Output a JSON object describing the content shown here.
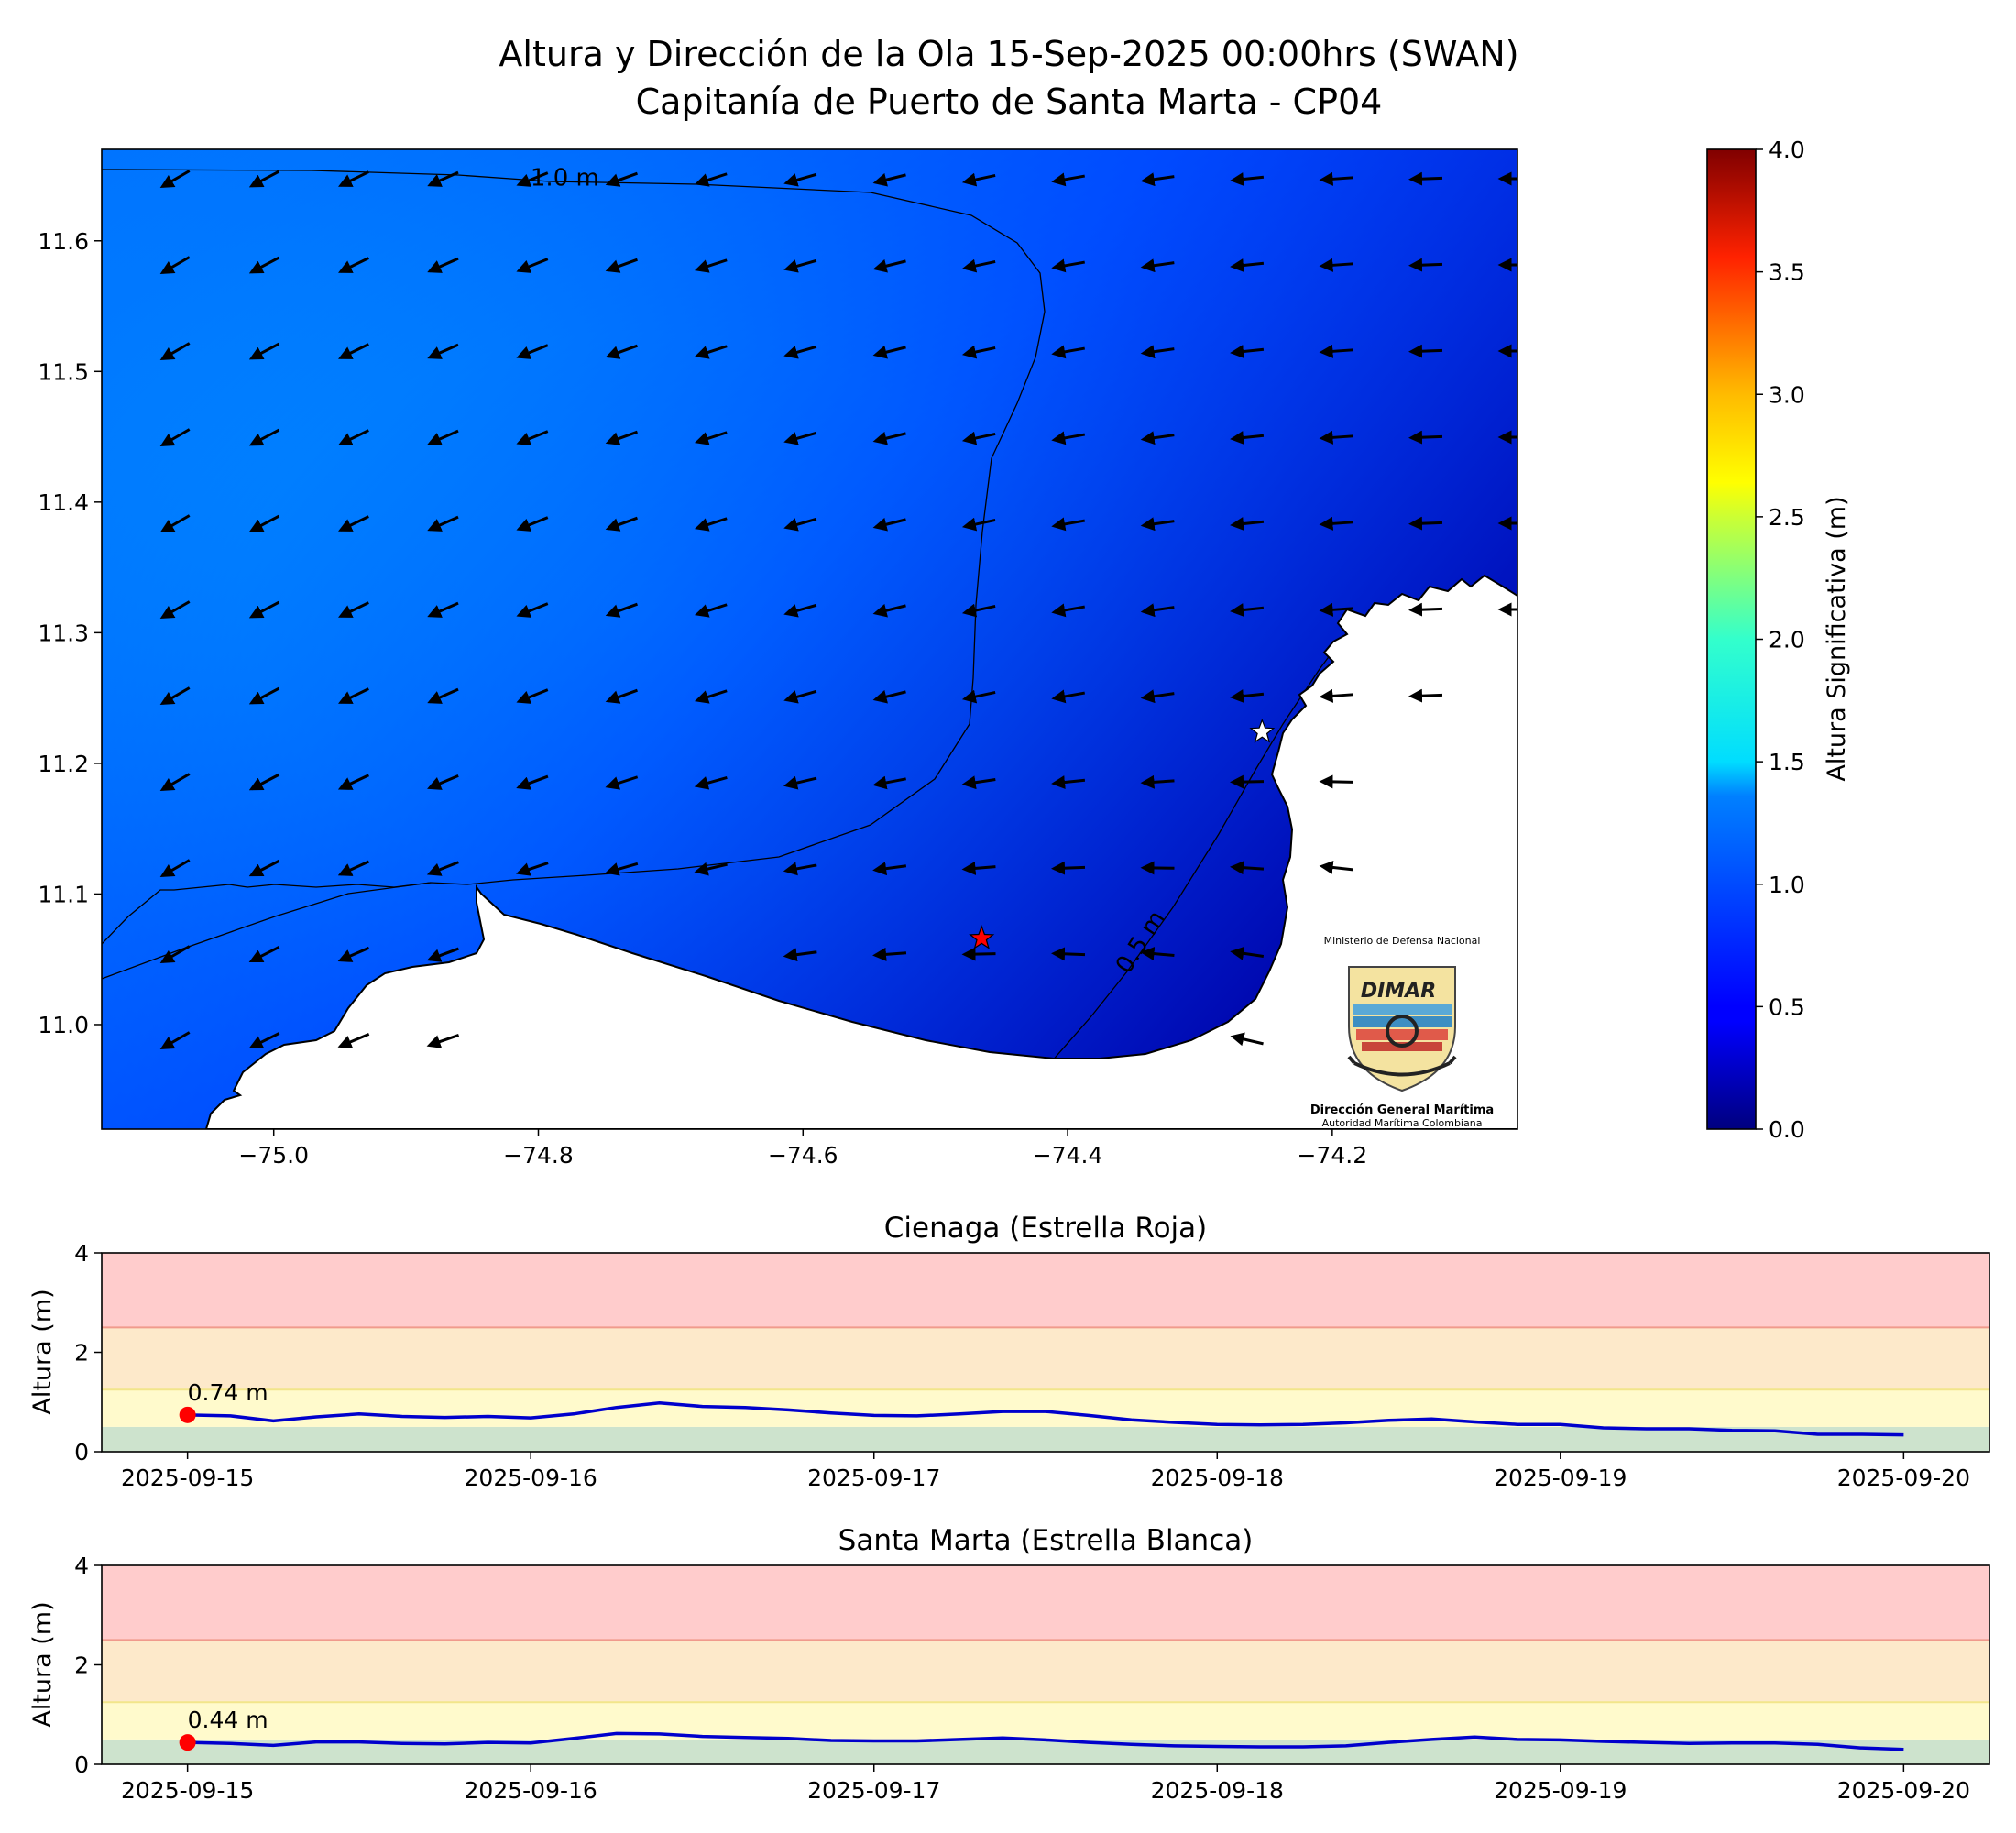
{
  "figure": {
    "title_line1": "Altura y Dirección de la Ola 15-Sep-2025 00:00hrs (SWAN)",
    "title_line2": "Capitanía de Puerto de Santa Marta - CP04"
  },
  "map": {
    "lon_range": [
      -75.13,
      -74.06
    ],
    "lat_range": [
      10.92,
      11.67
    ],
    "x_ticks": [
      -75.0,
      -74.8,
      -74.6,
      -74.4,
      -74.2
    ],
    "y_ticks": [
      11.0,
      11.1,
      11.2,
      11.3,
      11.4,
      11.5,
      11.6
    ],
    "x_tick_labels": [
      "−75.0",
      "−74.8",
      "−74.6",
      "−74.4",
      "−74.2"
    ],
    "y_tick_labels": [
      "11.0",
      "11.1",
      "11.2",
      "11.3",
      "11.4",
      "11.5",
      "11.6"
    ],
    "contour_labels": [
      {
        "text": "1.0 m",
        "lon": -74.78,
        "lat": 11.648
      },
      {
        "text": "0.5 m",
        "lon": -74.34,
        "lat": 11.06
      }
    ],
    "wave_direction_to": "southwest",
    "markers": {
      "cienaga": {
        "lon": -74.465,
        "lat": 11.066,
        "color": "#ff0000",
        "symbol": "star"
      },
      "santa_marta": {
        "lon": -74.253,
        "lat": 11.224,
        "color": "#ffffff",
        "symbol": "star"
      }
    }
  },
  "colorbar": {
    "label": "Altura Significativa (m)",
    "range": [
      0.0,
      4.0
    ],
    "ticks": [
      "0.0",
      "0.5",
      "1.0",
      "1.5",
      "2.0",
      "2.5",
      "3.0",
      "3.5",
      "4.0"
    ],
    "colormap": "jet"
  },
  "logo": {
    "top_text": "Ministerio de Defensa Nacional",
    "brand": "DIMAR",
    "org_name": "Dirección General Marítima",
    "tagline": "Autoridad Marítima Colombiana"
  },
  "chart_data": [
    {
      "type": "line",
      "title": "Cienaga (Estrella Roja)",
      "ylabel": "Altura (m)",
      "ylim": [
        0,
        4
      ],
      "y_ticks": [
        "0",
        "2",
        "4"
      ],
      "x_tick_labels": [
        "2025-09-15",
        "2025-09-16",
        "2025-09-17",
        "2025-09-18",
        "2025-09-19",
        "2025-09-20"
      ],
      "x_range_days": [
        -0.25,
        5.25
      ],
      "threshold_bands": [
        {
          "from": 0,
          "to": 0.5,
          "color": "#cde3cd"
        },
        {
          "from": 0.5,
          "to": 1.25,
          "color": "#fffacc"
        },
        {
          "from": 1.25,
          "to": 2.5,
          "color": "#fde9ca"
        },
        {
          "from": 2.5,
          "to": 4,
          "color": "#ffcccc"
        }
      ],
      "x": [
        "2025-09-15 00:00",
        "2025-09-15 03:00",
        "2025-09-15 06:00",
        "2025-09-15 09:00",
        "2025-09-15 12:00",
        "2025-09-15 15:00",
        "2025-09-15 18:00",
        "2025-09-15 21:00",
        "2025-09-16 00:00",
        "2025-09-16 03:00",
        "2025-09-16 06:00",
        "2025-09-16 09:00",
        "2025-09-16 12:00",
        "2025-09-16 15:00",
        "2025-09-16 18:00",
        "2025-09-16 21:00",
        "2025-09-17 00:00",
        "2025-09-17 03:00",
        "2025-09-17 06:00",
        "2025-09-17 09:00",
        "2025-09-17 12:00",
        "2025-09-17 15:00",
        "2025-09-17 18:00",
        "2025-09-17 21:00",
        "2025-09-18 00:00",
        "2025-09-18 03:00",
        "2025-09-18 06:00",
        "2025-09-18 09:00",
        "2025-09-18 12:00",
        "2025-09-18 15:00",
        "2025-09-18 18:00",
        "2025-09-18 21:00",
        "2025-09-19 00:00",
        "2025-09-19 03:00",
        "2025-09-19 06:00",
        "2025-09-19 09:00",
        "2025-09-19 12:00",
        "2025-09-19 15:00",
        "2025-09-19 18:00",
        "2025-09-19 21:00",
        "2025-09-20 00:00"
      ],
      "values": [
        0.74,
        0.72,
        0.62,
        0.7,
        0.76,
        0.71,
        0.69,
        0.71,
        0.68,
        0.76,
        0.89,
        0.98,
        0.91,
        0.89,
        0.84,
        0.78,
        0.73,
        0.72,
        0.76,
        0.81,
        0.81,
        0.73,
        0.64,
        0.59,
        0.55,
        0.54,
        0.55,
        0.58,
        0.63,
        0.66,
        0.6,
        0.55,
        0.55,
        0.48,
        0.46,
        0.46,
        0.43,
        0.42,
        0.35,
        0.35,
        0.34
      ],
      "current_point": {
        "x": "2025-09-15 00:00",
        "value": 0.74,
        "label": "0.74 m"
      }
    },
    {
      "type": "line",
      "title": "Santa Marta (Estrella Blanca)",
      "ylabel": "Altura (m)",
      "ylim": [
        0,
        4
      ],
      "y_ticks": [
        "0",
        "2",
        "4"
      ],
      "x_tick_labels": [
        "2025-09-15",
        "2025-09-16",
        "2025-09-17",
        "2025-09-18",
        "2025-09-19",
        "2025-09-20"
      ],
      "x_range_days": [
        -0.25,
        5.25
      ],
      "threshold_bands": [
        {
          "from": 0,
          "to": 0.5,
          "color": "#cde3cd"
        },
        {
          "from": 0.5,
          "to": 1.25,
          "color": "#fffacc"
        },
        {
          "from": 1.25,
          "to": 2.5,
          "color": "#fde9ca"
        },
        {
          "from": 2.5,
          "to": 4,
          "color": "#ffcccc"
        }
      ],
      "x": [
        "2025-09-15 00:00",
        "2025-09-15 03:00",
        "2025-09-15 06:00",
        "2025-09-15 09:00",
        "2025-09-15 12:00",
        "2025-09-15 15:00",
        "2025-09-15 18:00",
        "2025-09-15 21:00",
        "2025-09-16 00:00",
        "2025-09-16 03:00",
        "2025-09-16 06:00",
        "2025-09-16 09:00",
        "2025-09-16 12:00",
        "2025-09-16 15:00",
        "2025-09-16 18:00",
        "2025-09-16 21:00",
        "2025-09-17 00:00",
        "2025-09-17 03:00",
        "2025-09-17 06:00",
        "2025-09-17 09:00",
        "2025-09-17 12:00",
        "2025-09-17 15:00",
        "2025-09-17 18:00",
        "2025-09-17 21:00",
        "2025-09-18 00:00",
        "2025-09-18 03:00",
        "2025-09-18 06:00",
        "2025-09-18 09:00",
        "2025-09-18 12:00",
        "2025-09-18 15:00",
        "2025-09-18 18:00",
        "2025-09-18 21:00",
        "2025-09-19 00:00",
        "2025-09-19 03:00",
        "2025-09-19 06:00",
        "2025-09-19 09:00",
        "2025-09-19 12:00",
        "2025-09-19 15:00",
        "2025-09-19 18:00",
        "2025-09-19 21:00",
        "2025-09-20 00:00"
      ],
      "values": [
        0.44,
        0.42,
        0.38,
        0.45,
        0.45,
        0.42,
        0.41,
        0.44,
        0.43,
        0.52,
        0.62,
        0.61,
        0.56,
        0.54,
        0.52,
        0.48,
        0.47,
        0.47,
        0.5,
        0.53,
        0.49,
        0.44,
        0.4,
        0.37,
        0.36,
        0.35,
        0.35,
        0.37,
        0.44,
        0.5,
        0.55,
        0.5,
        0.49,
        0.46,
        0.44,
        0.42,
        0.43,
        0.43,
        0.4,
        0.33,
        0.3
      ],
      "current_point": {
        "x": "2025-09-15 00:00",
        "value": 0.44,
        "label": "0.44 m"
      }
    }
  ]
}
